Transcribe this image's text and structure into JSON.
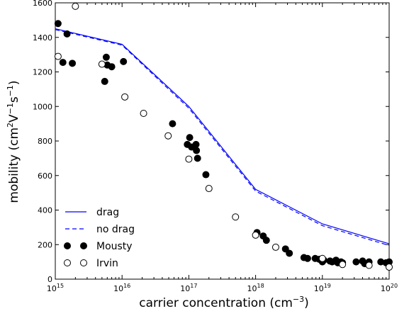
{
  "chart_data": {
    "type": "scatter",
    "xlabel": "carrier concentration (cm",
    "xlabel_sup": "−3",
    "xlabel_end": ")",
    "ylabel": "mobility (cm",
    "ylabel_sup1": "2",
    "ylabel_mid1": "V",
    "ylabel_sup2": "−1",
    "ylabel_mid2": "s",
    "ylabel_sup3": "−1",
    "ylabel_end": ")",
    "x_scale": "log",
    "xlim": [
      1000000000000000.0,
      1e+20
    ],
    "ylim": [
      0,
      1600
    ],
    "y_ticks": [
      0,
      200,
      400,
      600,
      800,
      1000,
      1200,
      1400,
      1600
    ],
    "y_tick_labels": [
      "0",
      "200",
      "400",
      "600",
      "800",
      "1000",
      "1200",
      "1400",
      "1600"
    ],
    "x_ticks": [
      1000000000000000.0,
      1e+16,
      1e+17,
      1e+18,
      1e+19,
      1e+20
    ],
    "x_tick_labels": [
      {
        "base": "10",
        "exp": "15"
      },
      {
        "base": "10",
        "exp": "16"
      },
      {
        "base": "10",
        "exp": "17"
      },
      {
        "base": "10",
        "exp": "18"
      },
      {
        "base": "10",
        "exp": "19"
      },
      {
        "base": "10",
        "exp": "20"
      }
    ],
    "grid": false,
    "legend_position": "bottom-left",
    "colors": {
      "line": "#0000ff",
      "marker": "#000000",
      "axes": "#000000"
    },
    "series": [
      {
        "name": "drag",
        "kind": "line",
        "style": "solid",
        "x": [
          1000000000000000.0,
          1e+16,
          1e+17,
          1e+18,
          1e+19,
          1e+20
        ],
        "y": [
          1450,
          1360,
          1000,
          520,
          320,
          205
        ]
      },
      {
        "name": "no drag",
        "kind": "line",
        "style": "dashed",
        "x": [
          1000000000000000.0,
          1e+16,
          1e+17,
          1e+18,
          1e+19,
          1e+20
        ],
        "y": [
          1445,
          1355,
          990,
          510,
          310,
          195
        ]
      },
      {
        "name": "Mousty",
        "kind": "marker",
        "fill": "filled",
        "x": [
          1100000000000000.0,
          1300000000000000.0,
          1500000000000000.0,
          1800000000000000.0,
          5500000000000000.0,
          5800000000000000.0,
          6000000000000000.0,
          7000000000000000.0,
          1.05e+16,
          5.7e+16,
          9.5e+16,
          1.03e+17,
          1.1e+17,
          1.28e+17,
          1.3e+17,
          1.35e+17,
          1.8e+17,
          1.05e+18,
          1.3e+18,
          1.45e+18,
          2.8e+18,
          3.2e+18,
          5.3e+18,
          6e+18,
          7.8e+18,
          9e+18,
          1e+19,
          1.05e+19,
          1.3e+19,
          1.4e+19,
          1.6e+19,
          1.7e+19,
          1.9e+19,
          2e+19,
          3.2e+19,
          4e+19,
          4.3e+19,
          5e+19,
          7.5e+19,
          9e+19,
          1e+20
        ],
        "y": [
          1480,
          1255,
          1420,
          1250,
          1145,
          1285,
          1240,
          1230,
          1260,
          900,
          780,
          820,
          765,
          780,
          745,
          700,
          605,
          270,
          250,
          225,
          175,
          150,
          125,
          120,
          120,
          115,
          100,
          110,
          105,
          100,
          110,
          95,
          100,
          95,
          100,
          105,
          90,
          100,
          100,
          95,
          100
        ]
      },
      {
        "name": "Irvin",
        "kind": "marker",
        "fill": "open",
        "x": [
          1100000000000000.0,
          2000000000000000.0,
          5000000000000000.0,
          1.1e+16,
          2.1e+16,
          4.9e+16,
          1e+17,
          2e+17,
          5e+17,
          1e+18,
          2e+18,
          1e+19,
          2e+19,
          5e+19,
          1e+20
        ],
        "y": [
          1290,
          1580,
          1245,
          1055,
          960,
          830,
          695,
          525,
          360,
          255,
          185,
          120,
          85,
          80,
          70
        ]
      }
    ]
  }
}
